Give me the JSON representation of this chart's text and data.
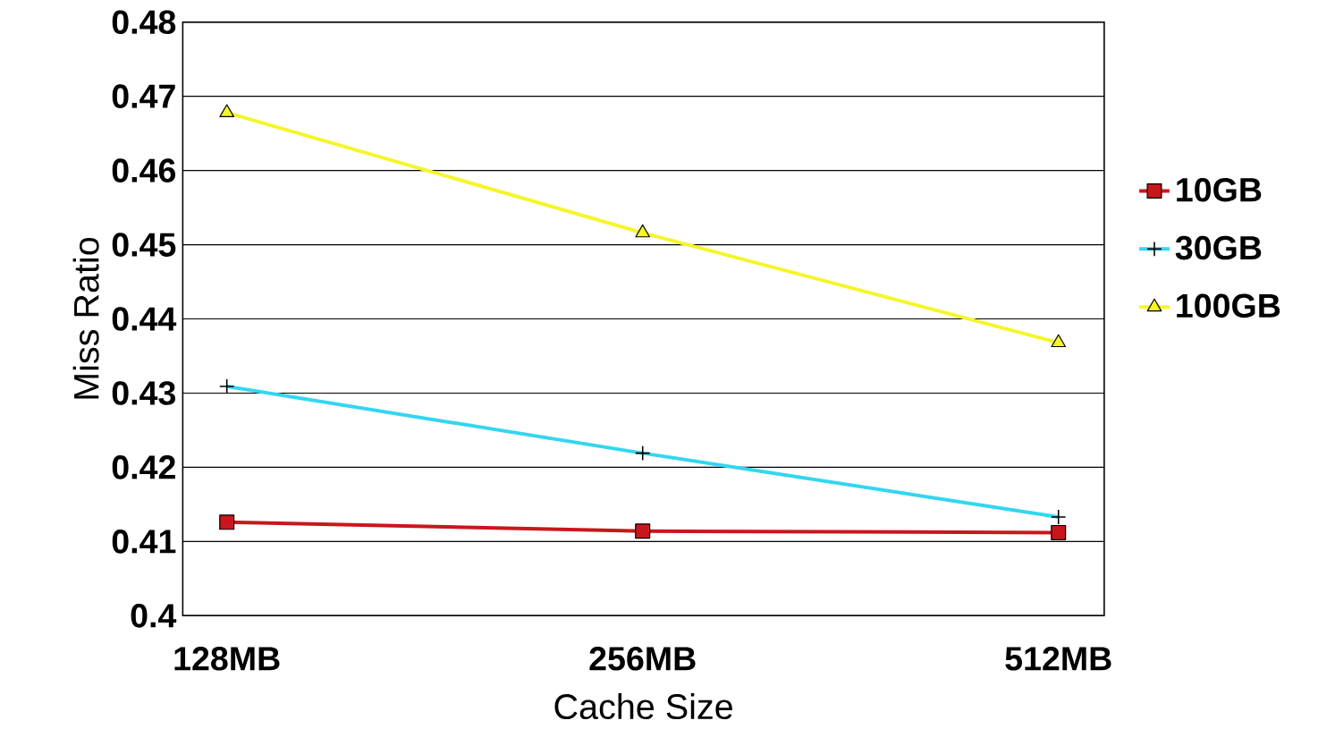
{
  "chart_data": {
    "type": "line",
    "xlabel": "Cache Size",
    "ylabel": "Miss Ratio",
    "categories": [
      "128MB",
      "256MB",
      "512MB"
    ],
    "series": [
      {
        "name": "10GB",
        "color": "#c8171c",
        "marker": "square",
        "values": [
          0.4126,
          0.4114,
          0.4112
        ]
      },
      {
        "name": "30GB",
        "color": "#33d6f0",
        "marker": "cross",
        "values": [
          0.4309,
          0.4219,
          0.4133
        ]
      },
      {
        "name": "100GB",
        "color": "#f5f52a",
        "marker": "triangle",
        "values": [
          0.4678,
          0.4516,
          0.4368
        ]
      }
    ],
    "ylim": [
      0.4,
      0.48
    ],
    "yticks": [
      0.4,
      0.41,
      0.42,
      0.43,
      0.44,
      0.45,
      0.46,
      0.47,
      0.48
    ],
    "grid": "y",
    "legend": "right",
    "line_style": "solid"
  }
}
